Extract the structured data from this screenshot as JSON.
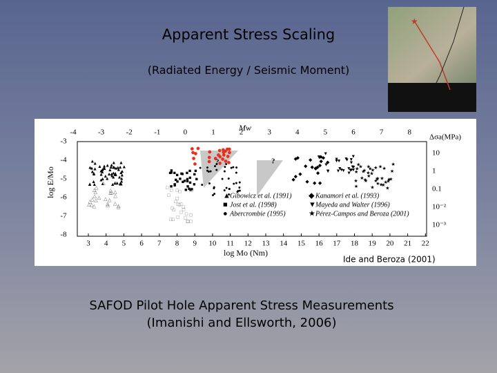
{
  "header": {
    "title": "Apparent Stress Scaling",
    "subtitle": "(Radiated Energy / Seismic Moment)"
  },
  "figure": {
    "top_axis": {
      "label": "Mw",
      "ticks": [
        "-4",
        "-3",
        "-2",
        "-1",
        "0",
        "1",
        "2",
        "3",
        "4",
        "5",
        "6",
        "7",
        "8"
      ]
    },
    "bottom_axis": {
      "label": "log Mo (Nm)",
      "ticks": [
        "3",
        "4",
        "5",
        "6",
        "7",
        "8",
        "9",
        "10",
        "11",
        "12",
        "13",
        "14",
        "15",
        "16",
        "17",
        "18",
        "19",
        "20",
        "21",
        "22"
      ]
    },
    "left_axis": {
      "label": "log E/Mo",
      "ticks": [
        "-3",
        "-4",
        "-5",
        "-6",
        "-7",
        "-8"
      ]
    },
    "right_axis": {
      "label": "Δσa(MPa)",
      "ticks": [
        "10",
        "1",
        "0.1",
        "10⁻²",
        "10⁻³"
      ]
    },
    "question_marks": [
      "?",
      "?"
    ],
    "legend_left": [
      "Gibowicz et al. (1991)",
      "Jost et al. (1998)",
      "Abercrombie (1995)"
    ],
    "legend_right": [
      "Kanamori et al. (1993)",
      "Mayeda and Walter (1996)",
      "Pérez-Campos and Beroza (2001)"
    ],
    "caption": "Ide and Beroza (2001)"
  },
  "footer": {
    "line1": "SAFOD Pilot Hole Apparent Stress Measurements",
    "line2": "(Imanishi and Ellsworth, 2006)"
  }
}
